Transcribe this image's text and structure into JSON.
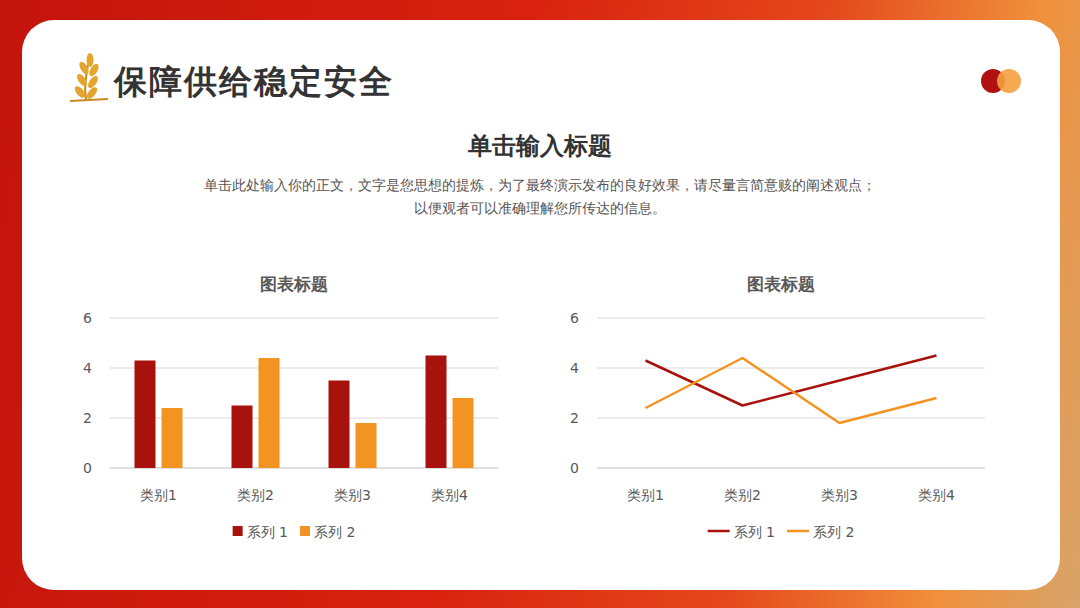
{
  "page": {
    "title": "保障供给稳定安全",
    "subtitle": "单击输入标题",
    "body": "单击此处输入你的正文，文字是您思想的提炼，为了最终演示发布的良好效果，请尽量言简意赅的阐述观点；以便观者可以准确理解您所传达的信息。"
  },
  "chart_data": [
    {
      "type": "bar",
      "title": "图表标题",
      "categories": [
        "类别1",
        "类别2",
        "类别3",
        "类别4"
      ],
      "series": [
        {
          "name": "系列 1",
          "color": "#a8120c",
          "values": [
            4.3,
            2.5,
            3.5,
            4.5
          ]
        },
        {
          "name": "系列 2",
          "color": "#f39422",
          "values": [
            2.4,
            4.4,
            1.8,
            2.8
          ]
        }
      ],
      "ylim": [
        0,
        6
      ],
      "yticks": [
        0,
        2,
        4,
        6
      ],
      "grid": true,
      "legend": "bottom"
    },
    {
      "type": "line",
      "title": "图表标题",
      "categories": [
        "类别1",
        "类别2",
        "类别3",
        "类别4"
      ],
      "series": [
        {
          "name": "系列 1",
          "color": "#a8120c",
          "values": [
            4.3,
            2.5,
            3.5,
            4.5
          ]
        },
        {
          "name": "系列 2",
          "color": "#f39422",
          "values": [
            2.4,
            4.4,
            1.8,
            2.8
          ]
        }
      ],
      "ylim": [
        0,
        6
      ],
      "yticks": [
        0,
        2,
        4,
        6
      ],
      "grid": true,
      "legend": "bottom"
    }
  ]
}
